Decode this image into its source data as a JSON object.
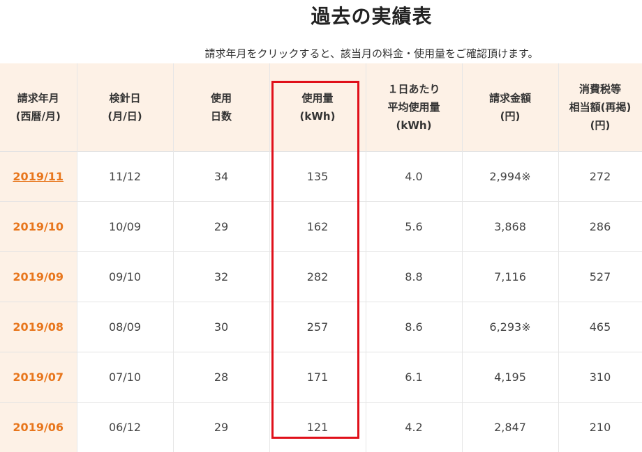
{
  "page": {
    "title": "過去の実績表",
    "subtitle": "請求年月をクリックすると、該当月の料金・使用量をご確認頂けます。"
  },
  "table": {
    "headers": [
      [
        "請求年月",
        "(西暦/月)"
      ],
      [
        "検針日",
        "(月/日)"
      ],
      [
        "使用",
        "日数"
      ],
      [
        "使用量",
        "(kWh)"
      ],
      [
        "１日あたり",
        "平均使用量",
        "(kWh)"
      ],
      [
        "請求金額",
        "(円)"
      ],
      [
        "消費税等",
        "相当額(再掲)",
        "(円)"
      ]
    ],
    "rows": [
      {
        "month": "2019/11",
        "reading_date": "11/12",
        "days": "34",
        "usage": "135",
        "avg": "4.0",
        "amount": "2,994※",
        "tax": "272"
      },
      {
        "month": "2019/10",
        "reading_date": "10/09",
        "days": "29",
        "usage": "162",
        "avg": "5.6",
        "amount": "3,868",
        "tax": "286"
      },
      {
        "month": "2019/09",
        "reading_date": "09/10",
        "days": "32",
        "usage": "282",
        "avg": "8.8",
        "amount": "7,116",
        "tax": "527"
      },
      {
        "month": "2019/08",
        "reading_date": "08/09",
        "days": "30",
        "usage": "257",
        "avg": "8.6",
        "amount": "6,293※",
        "tax": "465"
      },
      {
        "month": "2019/07",
        "reading_date": "07/10",
        "days": "28",
        "usage": "171",
        "avg": "6.1",
        "amount": "4,195",
        "tax": "310"
      },
      {
        "month": "2019/06",
        "reading_date": "06/12",
        "days": "29",
        "usage": "121",
        "avg": "4.2",
        "amount": "2,847",
        "tax": "210"
      }
    ]
  },
  "colors": {
    "accent": "#e8761c",
    "header_bg": "#fdf1e6",
    "highlight": "#e0101a"
  }
}
